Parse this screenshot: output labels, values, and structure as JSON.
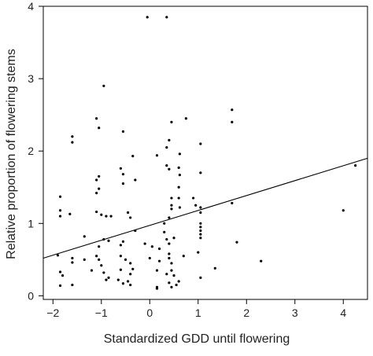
{
  "chart_data": {
    "type": "scatter",
    "title": "",
    "xlabel": "Standardized GDD until flowering",
    "ylabel": "Relative proportion of flowering stems",
    "xlim": [
      -2.2,
      4.5
    ],
    "ylim": [
      -0.05,
      4.0
    ],
    "xticks": [
      -2,
      -1,
      0,
      1,
      2,
      3,
      4
    ],
    "yticks": [
      0,
      1,
      2,
      3,
      4
    ],
    "grid": false,
    "legend": "none",
    "point_color": "#000000",
    "line_color": "#000000",
    "fit_line": {
      "x": [
        -2.2,
        4.5
      ],
      "y": [
        0.52,
        1.9
      ]
    },
    "points": [
      [
        -0.05,
        3.85
      ],
      [
        0.35,
        3.85
      ],
      [
        -0.95,
        2.9
      ],
      [
        -1.1,
        2.45
      ],
      [
        -1.05,
        2.32
      ],
      [
        1.7,
        2.57
      ],
      [
        1.7,
        2.4
      ],
      [
        0.75,
        2.45
      ],
      [
        0.45,
        2.4
      ],
      [
        -1.6,
        2.2
      ],
      [
        -1.6,
        2.12
      ],
      [
        -0.55,
        2.27
      ],
      [
        0.4,
        2.15
      ],
      [
        0.35,
        2.05
      ],
      [
        0.62,
        1.96
      ],
      [
        1.05,
        2.1
      ],
      [
        0.15,
        1.94
      ],
      [
        -0.35,
        1.93
      ],
      [
        0.35,
        1.8
      ],
      [
        0.4,
        1.75
      ],
      [
        0.6,
        1.77
      ],
      [
        0.62,
        1.67
      ],
      [
        -0.6,
        1.76
      ],
      [
        -0.55,
        1.68
      ],
      [
        -1.05,
        1.65
      ],
      [
        -1.1,
        1.6
      ],
      [
        -1.05,
        1.48
      ],
      [
        -1.1,
        1.42
      ],
      [
        -0.3,
        1.6
      ],
      [
        -0.55,
        1.55
      ],
      [
        1.05,
        1.7
      ],
      [
        0.6,
        1.5
      ],
      [
        4.25,
        1.8
      ],
      [
        -1.85,
        1.37
      ],
      [
        -1.85,
        1.18
      ],
      [
        -1.85,
        1.1
      ],
      [
        -1.65,
        1.13
      ],
      [
        -1.0,
        1.12
      ],
      [
        -0.9,
        1.1
      ],
      [
        -0.8,
        1.1
      ],
      [
        -1.1,
        1.16
      ],
      [
        -0.45,
        1.15
      ],
      [
        -0.4,
        1.08
      ],
      [
        0.45,
        1.35
      ],
      [
        0.45,
        1.25
      ],
      [
        0.45,
        1.2
      ],
      [
        0.6,
        1.35
      ],
      [
        0.62,
        1.22
      ],
      [
        0.9,
        1.35
      ],
      [
        0.95,
        1.25
      ],
      [
        1.05,
        1.22
      ],
      [
        1.05,
        1.15
      ],
      [
        0.4,
        1.08
      ],
      [
        0.3,
        1.0
      ],
      [
        1.05,
        1.0
      ],
      [
        1.05,
        0.95
      ],
      [
        1.05,
        0.9
      ],
      [
        1.05,
        0.85
      ],
      [
        1.05,
        0.8
      ],
      [
        1.7,
        1.28
      ],
      [
        4.0,
        1.18
      ],
      [
        -1.35,
        0.82
      ],
      [
        -0.95,
        0.78
      ],
      [
        -0.85,
        0.76
      ],
      [
        -0.55,
        0.75
      ],
      [
        -0.6,
        0.7
      ],
      [
        -1.05,
        0.68
      ],
      [
        -0.3,
        0.9
      ],
      [
        -0.1,
        0.72
      ],
      [
        0.05,
        0.68
      ],
      [
        0.2,
        0.65
      ],
      [
        0.3,
        0.88
      ],
      [
        0.35,
        0.78
      ],
      [
        0.4,
        0.72
      ],
      [
        0.5,
        0.8
      ],
      [
        0.7,
        0.55
      ],
      [
        1.0,
        0.6
      ],
      [
        1.8,
        0.74
      ],
      [
        -1.9,
        0.56
      ],
      [
        -1.6,
        0.52
      ],
      [
        -1.6,
        0.46
      ],
      [
        -1.35,
        0.5
      ],
      [
        -1.1,
        0.55
      ],
      [
        -1.05,
        0.5
      ],
      [
        -1.0,
        0.42
      ],
      [
        -0.6,
        0.55
      ],
      [
        -0.5,
        0.5
      ],
      [
        -0.4,
        0.45
      ],
      [
        0.0,
        0.52
      ],
      [
        0.2,
        0.48
      ],
      [
        0.4,
        0.58
      ],
      [
        0.4,
        0.52
      ],
      [
        0.45,
        0.45
      ],
      [
        1.35,
        0.38
      ],
      [
        2.3,
        0.48
      ],
      [
        -1.85,
        0.33
      ],
      [
        -1.8,
        0.28
      ],
      [
        -1.2,
        0.35
      ],
      [
        -0.95,
        0.32
      ],
      [
        -0.6,
        0.36
      ],
      [
        -0.35,
        0.37
      ],
      [
        -0.4,
        0.3
      ],
      [
        0.15,
        0.35
      ],
      [
        0.35,
        0.3
      ],
      [
        0.45,
        0.35
      ],
      [
        0.5,
        0.28
      ],
      [
        1.05,
        0.25
      ],
      [
        -1.85,
        0.14
      ],
      [
        -1.6,
        0.15
      ],
      [
        -0.9,
        0.22
      ],
      [
        -0.85,
        0.25
      ],
      [
        -0.65,
        0.22
      ],
      [
        -0.55,
        0.17
      ],
      [
        -0.45,
        0.2
      ],
      [
        -0.4,
        0.15
      ],
      [
        0.15,
        0.12
      ],
      [
        0.15,
        0.1
      ],
      [
        0.4,
        0.18
      ],
      [
        0.45,
        0.12
      ],
      [
        0.55,
        0.15
      ],
      [
        0.6,
        0.2
      ]
    ]
  }
}
